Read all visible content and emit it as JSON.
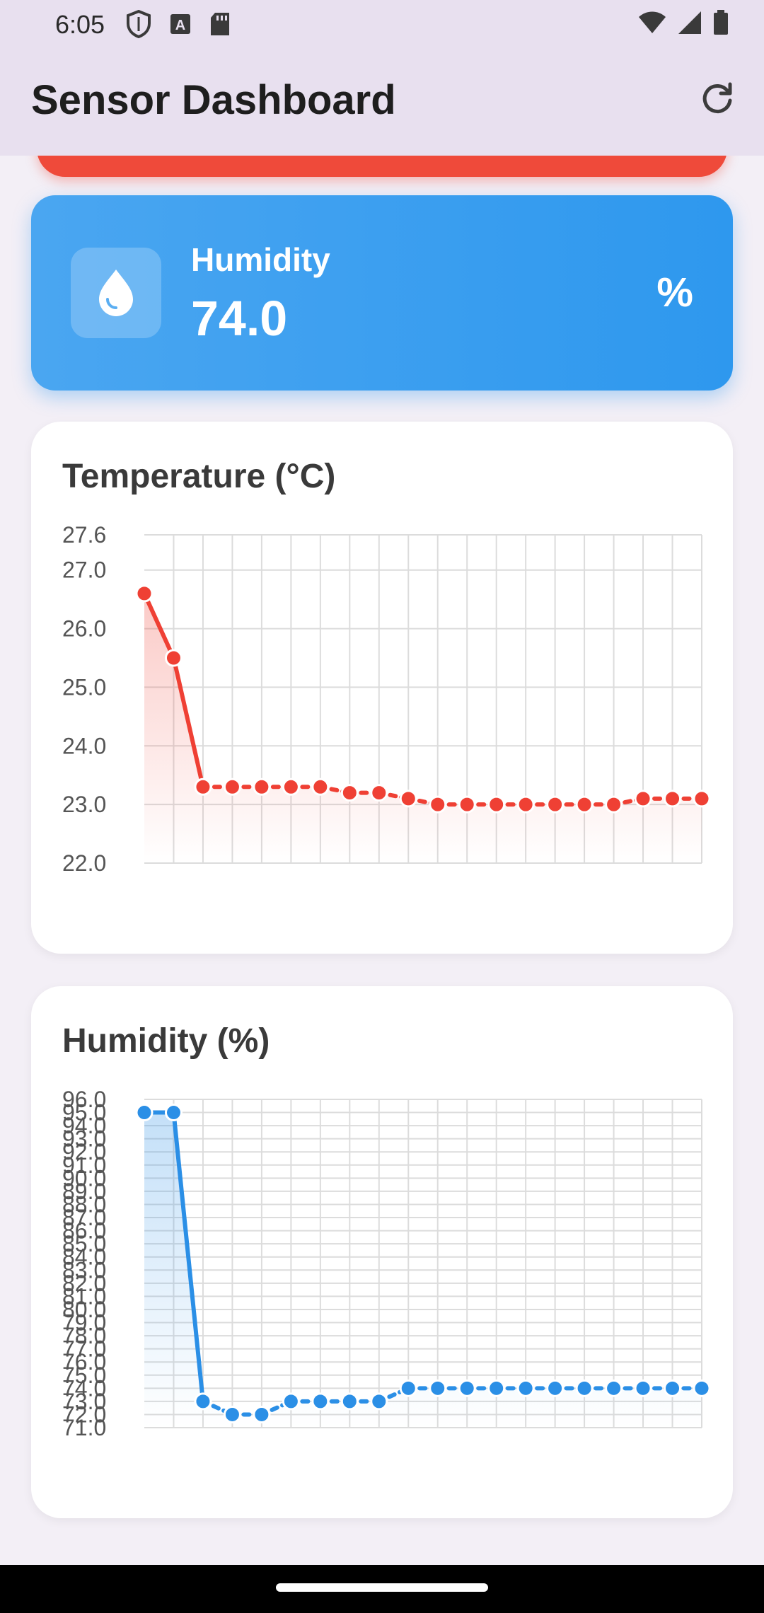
{
  "status_bar": {
    "time": "6:05",
    "icons_left": [
      "shield-icon",
      "a-badge-icon",
      "sd-card-icon"
    ],
    "icons_right": [
      "wifi-icon",
      "signal-icon",
      "battery-icon"
    ]
  },
  "app_bar": {
    "title": "Sensor Dashboard",
    "refresh_icon": "refresh-icon"
  },
  "humidity_card": {
    "label": "Humidity",
    "value": "74.0",
    "unit": "%",
    "icon": "water-drop-icon",
    "color": "#2e98ee"
  },
  "chart_data": [
    {
      "type": "line",
      "title": "Temperature (°C)",
      "color": "#ef4034",
      "fill": "area-gradient",
      "ylim": [
        22.0,
        27.6
      ],
      "y_ticks": [
        "27.6",
        "27.0",
        "26.0",
        "25.0",
        "24.0",
        "23.0",
        "22.0"
      ],
      "grid": true,
      "values": [
        26.6,
        25.5,
        23.3,
        23.3,
        23.3,
        23.3,
        23.3,
        23.2,
        23.2,
        23.1,
        23.0,
        23.0,
        23.0,
        23.0,
        23.0,
        23.0,
        23.0,
        23.1,
        23.1,
        23.1
      ]
    },
    {
      "type": "line",
      "title": "Humidity (%)",
      "color": "#2b8fe6",
      "fill": "area-gradient",
      "ylim": [
        71.0,
        96.0
      ],
      "y_ticks": [
        "96.0",
        "95.0",
        "94.0",
        "93.0",
        "92.0",
        "91.0",
        "90.0",
        "89.0",
        "88.0",
        "87.0",
        "86.0",
        "85.0",
        "84.0",
        "83.0",
        "82.0",
        "81.0",
        "80.0",
        "79.0",
        "78.0",
        "77.0",
        "76.0",
        "75.0",
        "74.0",
        "73.0",
        "72.0",
        "71.0"
      ],
      "grid": true,
      "values": [
        95.0,
        95.0,
        73.0,
        72.0,
        72.0,
        73.0,
        73.0,
        73.0,
        73.0,
        74.0,
        74.0,
        74.0,
        74.0,
        74.0,
        74.0,
        74.0,
        74.0,
        74.0,
        74.0,
        74.0
      ]
    }
  ]
}
